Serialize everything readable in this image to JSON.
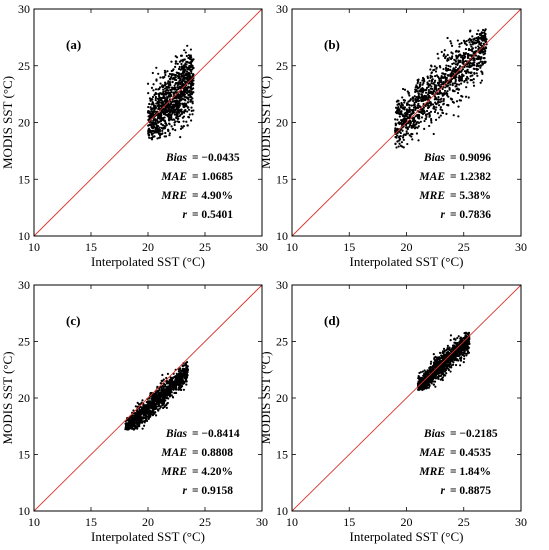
{
  "colors": {
    "points": "#000000",
    "identity_line": "#d9342b",
    "frame": "#000000"
  },
  "chart_data": [
    {
      "type": "scatter",
      "panel_label": "(a)",
      "xlabel": "Interpolated SST (°C)",
      "ylabel": "MODIS SST (°C)",
      "xlim": [
        10,
        30
      ],
      "ylim": [
        10,
        30
      ],
      "xticks": [
        "10",
        "15",
        "20",
        "25",
        "30"
      ],
      "yticks": [
        "10",
        "15",
        "20",
        "25",
        "30"
      ],
      "reference_line": "y = x",
      "cloud": {
        "x_range": [
          20.0,
          24.0
        ],
        "y_range": [
          18.5,
          27.2
        ],
        "center": [
          22.0,
          21.8
        ],
        "slope": 1.1,
        "spread": 1.4
      },
      "stats": [
        {
          "key": "Bias",
          "value": "= −0.0435"
        },
        {
          "key": "MAE",
          "value": "= 1.0685"
        },
        {
          "key": "MRE",
          "value": "= 4.90%"
        },
        {
          "key": "r",
          "value": "= 0.5401"
        }
      ]
    },
    {
      "type": "scatter",
      "panel_label": "(b)",
      "xlabel": "Interpolated SST (°C)",
      "ylabel": "MODIS SST (°C)",
      "xlim": [
        10,
        30
      ],
      "ylim": [
        10,
        30
      ],
      "xticks": [
        "10",
        "15",
        "20",
        "25",
        "30"
      ],
      "yticks": [
        "10",
        "15",
        "20",
        "25",
        "30"
      ],
      "reference_line": "y = x",
      "cloud": {
        "x_range": [
          19.0,
          27.0
        ],
        "y_range": [
          17.5,
          28.3
        ],
        "center": [
          23.5,
          23.6
        ],
        "slope": 0.9,
        "spread": 1.2
      },
      "stats": [
        {
          "key": "Bias",
          "value": "= 0.9096"
        },
        {
          "key": "MAE",
          "value": "= 1.2382"
        },
        {
          "key": "MRE",
          "value": "= 5.38%"
        },
        {
          "key": "r",
          "value": "= 0.7836"
        }
      ]
    },
    {
      "type": "scatter",
      "panel_label": "(c)",
      "xlabel": "Interpolated SST (°C)",
      "ylabel": "MODIS SST (°C)",
      "xlim": [
        10,
        30
      ],
      "ylim": [
        10,
        30
      ],
      "xticks": [
        "10",
        "15",
        "20",
        "25",
        "30"
      ],
      "yticks": [
        "10",
        "15",
        "20",
        "25",
        "30"
      ],
      "reference_line": "y = x",
      "cloud": {
        "x_range": [
          18.0,
          23.5
        ],
        "y_range": [
          17.2,
          23.3
        ],
        "center": [
          21.2,
          20.2
        ],
        "slope": 0.95,
        "spread": 0.5
      },
      "stats": [
        {
          "key": "Bias",
          "value": "= −0.8414"
        },
        {
          "key": "MAE",
          "value": "= 0.8808"
        },
        {
          "key": "MRE",
          "value": "= 4.20%"
        },
        {
          "key": "r",
          "value": "= 0.9158"
        }
      ]
    },
    {
      "type": "scatter",
      "panel_label": "(d)",
      "xlabel": "Interpolated SST (°C)",
      "ylabel": "MODIS SST (°C)",
      "xlim": [
        10,
        30
      ],
      "ylim": [
        10,
        30
      ],
      "xticks": [
        "10",
        "15",
        "20",
        "25",
        "30"
      ],
      "yticks": [
        "10",
        "15",
        "20",
        "25",
        "30"
      ],
      "reference_line": "y = x",
      "cloud": {
        "x_range": [
          21.0,
          25.5
        ],
        "y_range": [
          20.7,
          25.8
        ],
        "center": [
          23.3,
          23.1
        ],
        "slope": 0.95,
        "spread": 0.5
      },
      "stats": [
        {
          "key": "Bias",
          "value": "= −0.2185"
        },
        {
          "key": "MAE",
          "value": "= 0.4535"
        },
        {
          "key": "MRE",
          "value": "= 1.84%"
        },
        {
          "key": "r",
          "value": "= 0.8875"
        }
      ]
    }
  ]
}
